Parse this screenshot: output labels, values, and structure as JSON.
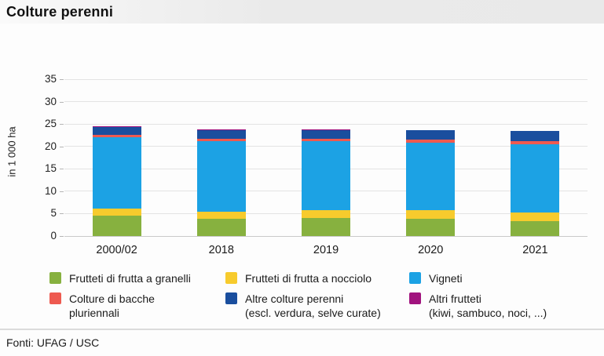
{
  "title": "Colture perenni",
  "footer": "Fonti: UFAG / USC",
  "chart_data": {
    "type": "bar",
    "stacked": true,
    "title": "Colture perenni",
    "ylabel": "in 1 000 ha",
    "ylim": [
      0,
      35
    ],
    "yticks": [
      0,
      5,
      10,
      15,
      20,
      25,
      30,
      35
    ],
    "grid": true,
    "legend_position": "bottom",
    "categories": [
      "2000/02",
      "2018",
      "2019",
      "2020",
      "2021"
    ],
    "series": [
      {
        "name": "Frutteti di frutta a granelli",
        "color": "#87B13F",
        "values": [
          4.6,
          3.9,
          4.0,
          3.8,
          3.4
        ]
      },
      {
        "name": "Frutteti di frutta a nocciolo",
        "color": "#F7CB2D",
        "values": [
          1.5,
          1.6,
          1.8,
          1.9,
          1.9
        ]
      },
      {
        "name": "Vigneti",
        "color": "#1CA2E4",
        "values": [
          16.0,
          15.6,
          15.3,
          15.2,
          15.1
        ]
      },
      {
        "name": "Colture di bacche pluriennali",
        "color": "#EE5A50",
        "values": [
          0.4,
          0.6,
          0.6,
          0.7,
          0.7
        ]
      },
      {
        "name": "Altre colture perenni (escl. verdura, selve curate)",
        "color": "#1A4E9E",
        "values": [
          1.8,
          2.0,
          2.0,
          2.0,
          2.3
        ]
      },
      {
        "name": "Altri frutteti (kiwi, sambuco, noci, ...)",
        "color": "#A1137E",
        "values": [
          0.2,
          0.1,
          0.1,
          0.1,
          0.1
        ]
      }
    ]
  },
  "legend": {
    "items": [
      {
        "line1": "Frutteti di frutta a granelli",
        "line2": "",
        "color": "#87B13F",
        "key": "granelli"
      },
      {
        "line1": "Frutteti di frutta a nocciolo",
        "line2": "",
        "color": "#F7CB2D",
        "key": "nocciolo"
      },
      {
        "line1": "Vigneti",
        "line2": "",
        "color": "#1CA2E4",
        "key": "vigneti"
      },
      {
        "line1": "Colture di bacche",
        "line2": "pluriennali",
        "color": "#EE5A50",
        "key": "bacche"
      },
      {
        "line1": "Altre colture perenni",
        "line2": "(escl. verdura, selve curate)",
        "color": "#1A4E9E",
        "key": "altre-colture"
      },
      {
        "line1": "Altri frutteti",
        "line2": "(kiwi, sambuco, noci, ...)",
        "color": "#A1137E",
        "key": "altri-frutteti"
      }
    ]
  }
}
